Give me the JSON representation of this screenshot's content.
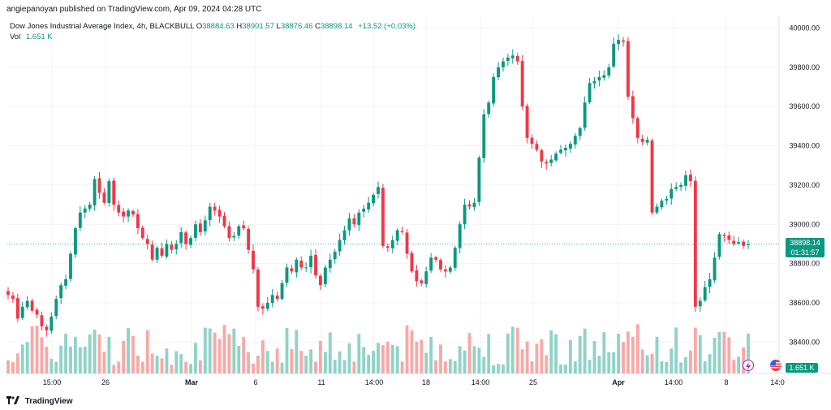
{
  "publish_line": "angiepanoyan published on TradingView.com, Apr 09, 2024 04:28 UTC",
  "legend": {
    "symbol": "Dow Jones Industrial Average Index, 4h, BLACKBULL",
    "open_label": "O",
    "open": "38884.63",
    "high_label": "H",
    "high": "38901.57",
    "low_label": "L",
    "low": "38876.46",
    "close_label": "C",
    "close": "38898.14",
    "change": "+13.52 (+0.03%)"
  },
  "volume_legend": {
    "label": "Vol",
    "value": "1.651 K"
  },
  "last_price": {
    "price": "38898.14",
    "countdown": "01:31:57"
  },
  "volume_tag": "1.651 K",
  "footer": {
    "brand": "TradingView"
  },
  "colors": {
    "up": "#089981",
    "down": "#f23645",
    "up_vol": "#8fd3c7",
    "down_vol": "#f7a9a7"
  },
  "icons": {
    "flash": "lightning-icon",
    "flag": "us-flag-icon",
    "logo": "tradingview-logo-icon"
  },
  "chart_data": {
    "type": "candlestick",
    "timeframe": "4h",
    "y_axis": {
      "ticks": [
        38400,
        38600,
        38800,
        39000,
        39200,
        39400,
        39600,
        39800,
        40000
      ],
      "range": [
        38240,
        40060
      ]
    },
    "x_axis": {
      "ticks": [
        "15:00",
        "26",
        "Mar",
        "6",
        "11",
        "14:00",
        "18",
        "14:00",
        "25",
        "Apr",
        "14:00",
        "8",
        "14:0"
      ]
    },
    "grid": true,
    "closes": [
      38640,
      38620,
      38520,
      38580,
      38610,
      38560,
      38540,
      38480,
      38460,
      38530,
      38620,
      38690,
      38720,
      38850,
      38980,
      39060,
      39080,
      39100,
      39230,
      39160,
      39110,
      39220,
      39100,
      39060,
      39040,
      39070,
      39050,
      38980,
      38930,
      38900,
      38820,
      38880,
      38840,
      38900,
      38870,
      38900,
      38960,
      38900,
      38930,
      39000,
      38960,
      39020,
      39090,
      39070,
      39040,
      38990,
      38930,
      38940,
      38990,
      38980,
      38870,
      38770,
      38580,
      38570,
      38600,
      38640,
      38620,
      38700,
      38780,
      38760,
      38820,
      38780,
      38780,
      38840,
      38740,
      38690,
      38780,
      38820,
      38860,
      38920,
      38970,
      39030,
      39000,
      39060,
      39080,
      39110,
      39150,
      39190,
      38890,
      38880,
      38920,
      38970,
      38960,
      38850,
      38760,
      38710,
      38700,
      38760,
      38830,
      38820,
      38770,
      38760,
      38780,
      38880,
      39000,
      39100,
      39090,
      39110,
      39340,
      39560,
      39620,
      39750,
      39800,
      39830,
      39850,
      39860,
      39830,
      39600,
      39440,
      39410,
      39380,
      39320,
      39310,
      39330,
      39360,
      39380,
      39390,
      39410,
      39450,
      39490,
      39620,
      39720,
      39730,
      39750,
      39760,
      39800,
      39920,
      39940,
      39930,
      39650,
      39540,
      39440,
      39420,
      39430,
      39060,
      39090,
      39120,
      39130,
      39180,
      39190,
      39200,
      39250,
      39220,
      38580,
      38610,
      38680,
      38720,
      38830,
      38950,
      38940,
      38920,
      38900,
      38910,
      38890,
      38898
    ],
    "volumes_note": "relative volume bars, max ~0.45 of full scale"
  }
}
